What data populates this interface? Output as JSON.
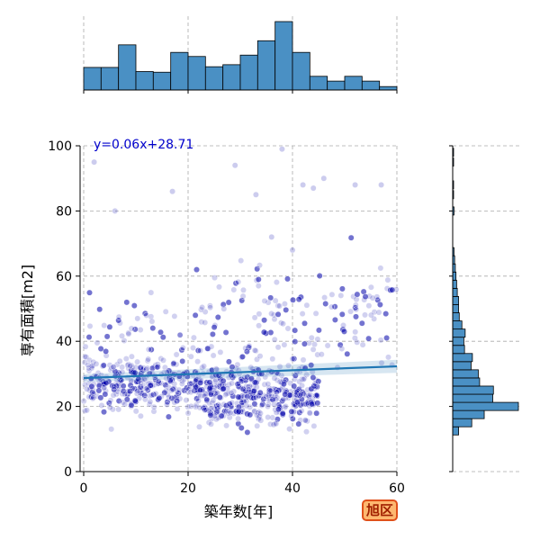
{
  "chart_data": {
    "type": "scatter",
    "title": "",
    "xlabel": "築年数[年]",
    "ylabel": "専有面積[m2]",
    "xlim": [
      0,
      60
    ],
    "ylim": [
      0,
      100
    ],
    "xticks": [
      "0",
      "20",
      "40",
      "60"
    ],
    "yticks": [
      "0",
      "20",
      "40",
      "60",
      "80",
      "100"
    ],
    "grid": true,
    "regression": {
      "label": "y=0.06x+28.71",
      "slope": 0.06,
      "intercept": 28.71,
      "color": "#1f77b4"
    },
    "point_color": "#0000aa",
    "hist_color": "#4a90c4",
    "x_histogram": {
      "bin_edges": [
        0,
        3.33,
        6.67,
        10,
        13.33,
        16.67,
        20,
        23.33,
        26.67,
        30,
        33.33,
        36.67,
        40,
        43.33,
        46.67,
        50,
        53.33,
        56.67,
        60
      ],
      "relative_heights": [
        0.33,
        0.33,
        0.66,
        0.27,
        0.26,
        0.55,
        0.49,
        0.34,
        0.37,
        0.51,
        0.72,
        1.0,
        0.55,
        0.2,
        0.13,
        0.2,
        0.13,
        0.05
      ]
    },
    "y_histogram": {
      "bin_centers": [
        12.5,
        15,
        17.5,
        20,
        22.5,
        25,
        27.5,
        30,
        32.5,
        35,
        37.5,
        40,
        42.5,
        45,
        47.5,
        50,
        52.5,
        55,
        57.5,
        60,
        62.5,
        65,
        67.5,
        80,
        85,
        88,
        95,
        98
      ],
      "relative_widths": [
        0.09,
        0.29,
        0.48,
        1.0,
        0.61,
        0.62,
        0.41,
        0.39,
        0.28,
        0.3,
        0.18,
        0.17,
        0.19,
        0.14,
        0.1,
        0.09,
        0.09,
        0.07,
        0.06,
        0.05,
        0.04,
        0.03,
        0.02,
        0.02,
        0.01,
        0.01,
        0.01,
        0.01
      ]
    }
  },
  "badge": {
    "label": "旭区"
  }
}
